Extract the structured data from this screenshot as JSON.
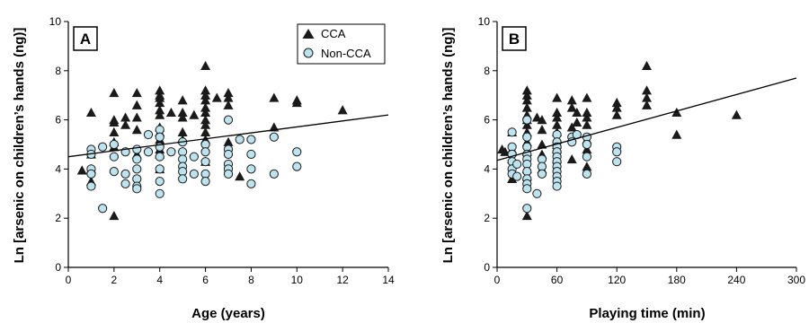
{
  "figure": {
    "colors": {
      "cca": "#1a1a1a",
      "non_cca_fill": "#bde3ee",
      "non_cca_stroke": "#1a1a1a",
      "axis": "#000000",
      "trend": "#000000",
      "background": "#ffffff"
    }
  },
  "chart_data": [
    {
      "type": "scatter",
      "panel_label": "A",
      "xlabel": "Age (years)",
      "ylabel": "Ln [arsenic on children’s hands (ng)]",
      "xlim": [
        0,
        14
      ],
      "ylim": [
        0,
        10
      ],
      "xticks": [
        0,
        2,
        4,
        6,
        8,
        10,
        12,
        14
      ],
      "yticks": [
        0,
        2,
        4,
        6,
        8,
        10
      ],
      "grid": false,
      "legend": {
        "placement": "top-right",
        "entries": [
          "CCA",
          "Non-CCA"
        ]
      },
      "trendline": {
        "x": [
          0,
          14
        ],
        "y": [
          4.5,
          6.2
        ]
      },
      "series": [
        {
          "name": "CCA",
          "marker": "triangle",
          "points": [
            [
              0.6,
              3.95
            ],
            [
              1,
              6.3
            ],
            [
              1,
              4.6
            ],
            [
              1,
              3.5
            ],
            [
              1,
              4.0
            ],
            [
              2,
              7.1
            ],
            [
              2,
              6.0
            ],
            [
              2,
              5.9
            ],
            [
              2,
              5.5
            ],
            [
              2,
              5.1
            ],
            [
              2,
              4.9
            ],
            [
              2,
              2.1
            ],
            [
              2.5,
              6.1
            ],
            [
              2.5,
              5.8
            ],
            [
              3,
              7.1
            ],
            [
              3,
              6.6
            ],
            [
              3,
              6.1
            ],
            [
              3,
              5.6
            ],
            [
              3,
              4.6
            ],
            [
              4,
              7.2
            ],
            [
              4,
              7.0
            ],
            [
              4,
              6.9
            ],
            [
              4,
              6.7
            ],
            [
              4,
              6.4
            ],
            [
              4,
              6.2
            ],
            [
              4,
              5.7
            ],
            [
              4,
              5.5
            ],
            [
              4,
              5.2
            ],
            [
              4,
              4.8
            ],
            [
              4,
              4.6
            ],
            [
              4,
              4.0
            ],
            [
              4.5,
              6.3
            ],
            [
              5,
              6.8
            ],
            [
              5,
              6.3
            ],
            [
              5,
              6.1
            ],
            [
              5,
              5.5
            ],
            [
              5,
              5.2
            ],
            [
              5.5,
              6.2
            ],
            [
              6,
              8.2
            ],
            [
              6,
              7.2
            ],
            [
              6,
              7.0
            ],
            [
              6,
              6.8
            ],
            [
              6,
              6.5
            ],
            [
              6,
              6.3
            ],
            [
              6,
              6.0
            ],
            [
              6,
              5.8
            ],
            [
              6,
              5.5
            ],
            [
              6,
              5.2
            ],
            [
              6,
              4.3
            ],
            [
              6.5,
              6.9
            ],
            [
              7,
              7.1
            ],
            [
              7,
              6.9
            ],
            [
              7,
              6.6
            ],
            [
              7,
              5.1
            ],
            [
              7.5,
              3.7
            ],
            [
              9,
              6.9
            ],
            [
              9,
              5.7
            ],
            [
              10,
              6.8
            ],
            [
              10,
              6.7
            ],
            [
              12,
              6.4
            ]
          ]
        },
        {
          "name": "Non-CCA",
          "marker": "circle",
          "points": [
            [
              1,
              4.8
            ],
            [
              1,
              4.6
            ],
            [
              1,
              4.0
            ],
            [
              1,
              3.8
            ],
            [
              1,
              3.3
            ],
            [
              1.5,
              4.9
            ],
            [
              1.5,
              2.4
            ],
            [
              2,
              5.0
            ],
            [
              2,
              4.5
            ],
            [
              2,
              3.9
            ],
            [
              2.5,
              4.7
            ],
            [
              2.5,
              3.8
            ],
            [
              2.5,
              3.4
            ],
            [
              3,
              4.8
            ],
            [
              3,
              4.4
            ],
            [
              3,
              4.0
            ],
            [
              3,
              3.6
            ],
            [
              3,
              3.3
            ],
            [
              3,
              3.2
            ],
            [
              3.5,
              5.4
            ],
            [
              3.5,
              4.7
            ],
            [
              4,
              5.6
            ],
            [
              4,
              5.3
            ],
            [
              4,
              4.9
            ],
            [
              4,
              4.5
            ],
            [
              4,
              4.0
            ],
            [
              4,
              3.5
            ],
            [
              4,
              3.0
            ],
            [
              4.5,
              4.7
            ],
            [
              5,
              5.1
            ],
            [
              5,
              4.7
            ],
            [
              5,
              4.4
            ],
            [
              5,
              4.1
            ],
            [
              5,
              3.9
            ],
            [
              5,
              3.6
            ],
            [
              5.5,
              4.5
            ],
            [
              5.5,
              3.8
            ],
            [
              6,
              5.0
            ],
            [
              6,
              4.7
            ],
            [
              6,
              4.3
            ],
            [
              6,
              3.8
            ],
            [
              6,
              3.5
            ],
            [
              7,
              6.0
            ],
            [
              7,
              4.8
            ],
            [
              7,
              4.6
            ],
            [
              7,
              4.2
            ],
            [
              7,
              4.0
            ],
            [
              7,
              3.8
            ],
            [
              7.5,
              5.2
            ],
            [
              8,
              5.2
            ],
            [
              8,
              4.6
            ],
            [
              8,
              4.0
            ],
            [
              8,
              3.4
            ],
            [
              9,
              5.3
            ],
            [
              9,
              3.8
            ],
            [
              10,
              4.7
            ],
            [
              10,
              4.1
            ]
          ]
        }
      ]
    },
    {
      "type": "scatter",
      "panel_label": "B",
      "xlabel": "Playing time (min)",
      "ylabel": "Ln [arsenic on children’s hands (ng)]",
      "xlim": [
        0,
        300
      ],
      "ylim": [
        0,
        10
      ],
      "xticks": [
        0,
        60,
        120,
        180,
        240,
        300
      ],
      "yticks": [
        0,
        2,
        4,
        6,
        8,
        10
      ],
      "grid": false,
      "legend": {
        "placement": "none",
        "entries": []
      },
      "trendline": {
        "x": [
          0,
          300
        ],
        "y": [
          4.35,
          7.7
        ]
      },
      "series": [
        {
          "name": "CCA",
          "marker": "triangle",
          "points": [
            [
              5,
              4.8
            ],
            [
              8,
              4.7
            ],
            [
              15,
              5.5
            ],
            [
              15,
              4.8
            ],
            [
              15,
              4.4
            ],
            [
              15,
              3.6
            ],
            [
              30,
              7.2
            ],
            [
              30,
              7.0
            ],
            [
              30,
              6.8
            ],
            [
              30,
              6.5
            ],
            [
              30,
              6.2
            ],
            [
              30,
              6.0
            ],
            [
              30,
              5.8
            ],
            [
              30,
              5.5
            ],
            [
              30,
              5.1
            ],
            [
              30,
              4.7
            ],
            [
              30,
              4.0
            ],
            [
              30,
              3.7
            ],
            [
              30,
              2.1
            ],
            [
              40,
              6.1
            ],
            [
              45,
              6.0
            ],
            [
              45,
              5.6
            ],
            [
              45,
              5.0
            ],
            [
              45,
              4.6
            ],
            [
              45,
              4.0
            ],
            [
              60,
              6.9
            ],
            [
              60,
              6.3
            ],
            [
              60,
              6.1
            ],
            [
              60,
              5.8
            ],
            [
              60,
              5.5
            ],
            [
              60,
              5.2
            ],
            [
              60,
              5.0
            ],
            [
              60,
              4.8
            ],
            [
              60,
              4.4
            ],
            [
              75,
              6.8
            ],
            [
              75,
              6.5
            ],
            [
              75,
              5.7
            ],
            [
              75,
              4.4
            ],
            [
              80,
              6.3
            ],
            [
              80,
              5.9
            ],
            [
              90,
              6.9
            ],
            [
              90,
              6.3
            ],
            [
              90,
              6.1
            ],
            [
              90,
              5.8
            ],
            [
              90,
              5.2
            ],
            [
              90,
              4.8
            ],
            [
              90,
              4.1
            ],
            [
              120,
              6.7
            ],
            [
              120,
              6.5
            ],
            [
              120,
              6.2
            ],
            [
              150,
              8.2
            ],
            [
              150,
              7.2
            ],
            [
              150,
              6.9
            ],
            [
              150,
              6.6
            ],
            [
              180,
              6.3
            ],
            [
              180,
              5.4
            ],
            [
              240,
              6.2
            ]
          ]
        },
        {
          "name": "Non-CCA",
          "marker": "circle",
          "points": [
            [
              15,
              5.5
            ],
            [
              15,
              4.9
            ],
            [
              15,
              4.6
            ],
            [
              15,
              4.3
            ],
            [
              15,
              4.0
            ],
            [
              15,
              3.8
            ],
            [
              20,
              4.2
            ],
            [
              20,
              3.7
            ],
            [
              30,
              6.0
            ],
            [
              30,
              5.3
            ],
            [
              30,
              4.9
            ],
            [
              30,
              4.6
            ],
            [
              30,
              4.4
            ],
            [
              30,
              4.2
            ],
            [
              30,
              3.9
            ],
            [
              30,
              3.6
            ],
            [
              30,
              3.4
            ],
            [
              30,
              3.2
            ],
            [
              30,
              2.4
            ],
            [
              40,
              3.0
            ],
            [
              45,
              4.4
            ],
            [
              45,
              4.1
            ],
            [
              45,
              3.8
            ],
            [
              60,
              5.4
            ],
            [
              60,
              5.1
            ],
            [
              60,
              4.9
            ],
            [
              60,
              4.7
            ],
            [
              60,
              4.5
            ],
            [
              60,
              4.3
            ],
            [
              60,
              4.1
            ],
            [
              60,
              3.9
            ],
            [
              60,
              3.7
            ],
            [
              60,
              3.5
            ],
            [
              60,
              3.3
            ],
            [
              75,
              5.3
            ],
            [
              75,
              5.1
            ],
            [
              80,
              5.4
            ],
            [
              90,
              5.3
            ],
            [
              90,
              5.0
            ],
            [
              90,
              4.5
            ],
            [
              90,
              3.8
            ],
            [
              120,
              4.9
            ],
            [
              120,
              4.7
            ],
            [
              120,
              4.3
            ]
          ]
        }
      ]
    }
  ]
}
